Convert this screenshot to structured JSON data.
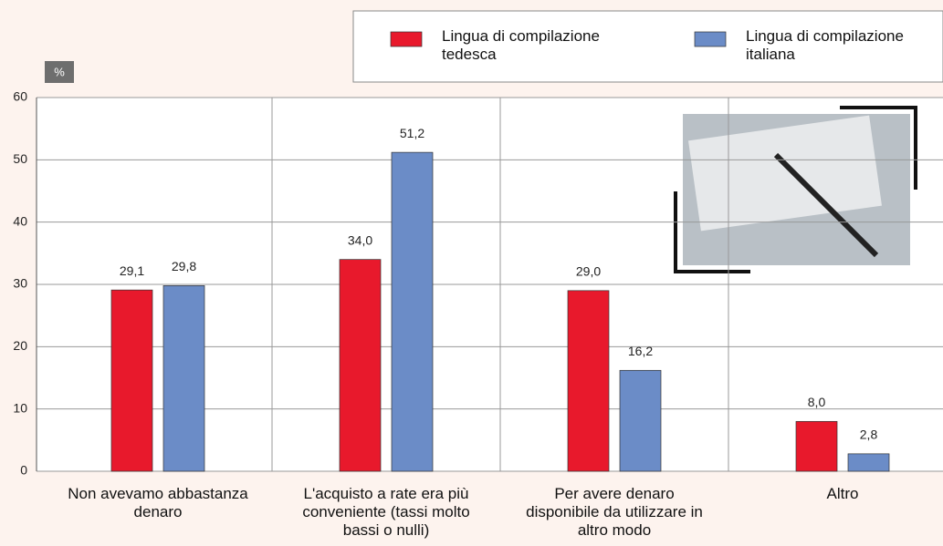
{
  "chart_data": {
    "type": "bar",
    "ylabel": "%",
    "categories": [
      "Non avevamo abbastanza denaro",
      "L'acquisto a rate era più conveniente (tassi molto bassi o nulli)",
      "Per avere denaro disponibile da utilizzare in altro modo",
      "Altro"
    ],
    "series": [
      {
        "name": "Lingua di compilazione tedesca",
        "color": "#e8192c",
        "values": [
          29.1,
          34.0,
          29.0,
          8.0
        ],
        "value_labels": [
          "29,1",
          "34,0",
          "29,0",
          "8,0"
        ]
      },
      {
        "name": "Lingua di compilazione italiana",
        "color": "#6b8cc7",
        "values": [
          29.8,
          51.2,
          16.2,
          2.8
        ],
        "value_labels": [
          "29,8",
          "51,2",
          "16,2",
          "2,8"
        ]
      }
    ],
    "ylim": [
      0,
      60
    ],
    "yticks": [
      0,
      10,
      20,
      30,
      40,
      50,
      60
    ],
    "grid": true
  }
}
